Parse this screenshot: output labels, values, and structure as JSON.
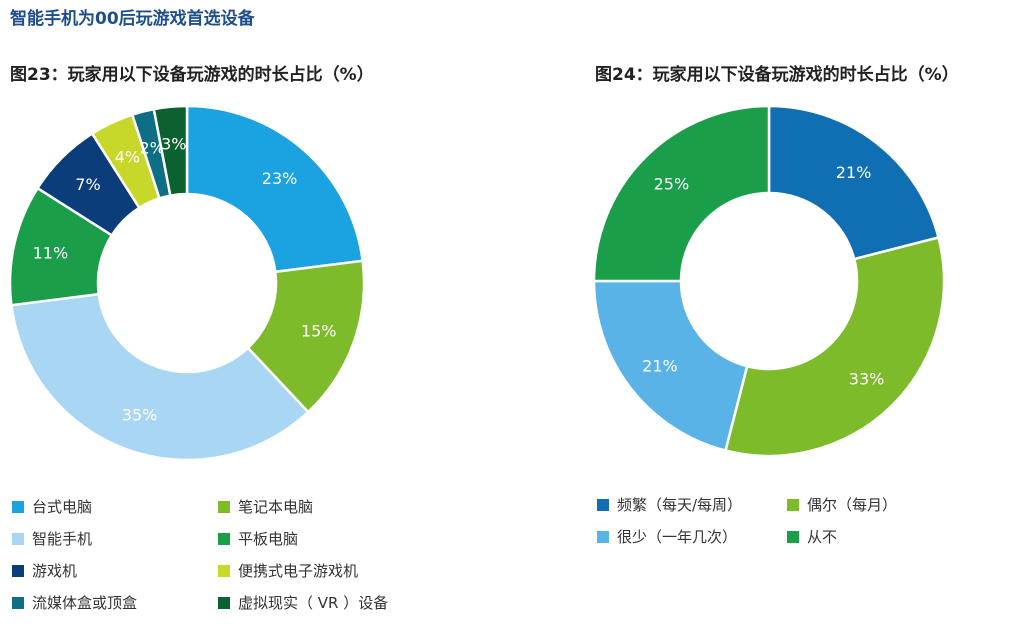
{
  "page_title": "智能手机为00后玩游戏首选设备",
  "chart_data": [
    {
      "type": "pie",
      "title": "图23：玩家用以下设备玩游戏的时长占比（%）",
      "categories": [
        "台式电脑",
        "笔记本电脑",
        "智能手机",
        "平板电脑",
        "游戏机",
        "便携式电子游戏机",
        "流媒体盒或顶盒",
        "虚拟现实（ VR ）设备"
      ],
      "values": [
        23,
        15,
        35,
        11,
        7,
        4,
        2,
        3
      ],
      "labels": [
        "23%",
        "15%",
        "35%",
        "11%",
        "7%",
        "4%",
        "2%",
        "3%"
      ],
      "legend_labels": [
        "台式电脑",
        "笔记本电脑",
        "智能手机",
        "平板电脑",
        "游戏机",
        "便携式电子游戏机",
        "流媒体盒或顶盒",
        "虚拟现实（ VR ）设备"
      ],
      "colors": [
        "#1aa3e0",
        "#7dbb2a",
        "#a9d6f3",
        "#1a9e4a",
        "#0b3d7a",
        "#c8d82a",
        "#0e6e86",
        "#0b6130"
      ],
      "legend": "bottom"
    },
    {
      "type": "pie",
      "title": "图24：玩家用以下设备玩游戏的时长占比（%）",
      "categories": [
        "频繁（每天/每周）",
        "偶尔（每月）",
        "很少（一年几次）",
        "从不"
      ],
      "values": [
        21,
        33,
        21,
        25
      ],
      "labels": [
        "21%",
        "33%",
        "21%",
        "25%"
      ],
      "legend_labels": [
        "频繁（每天/每周）",
        "偶尔（每月）",
        "很少（一年几次）",
        "从不"
      ],
      "colors": [
        "#0f6fb2",
        "#7dbb2a",
        "#5ab3e6",
        "#1a9e4a"
      ],
      "legend": "bottom"
    }
  ]
}
